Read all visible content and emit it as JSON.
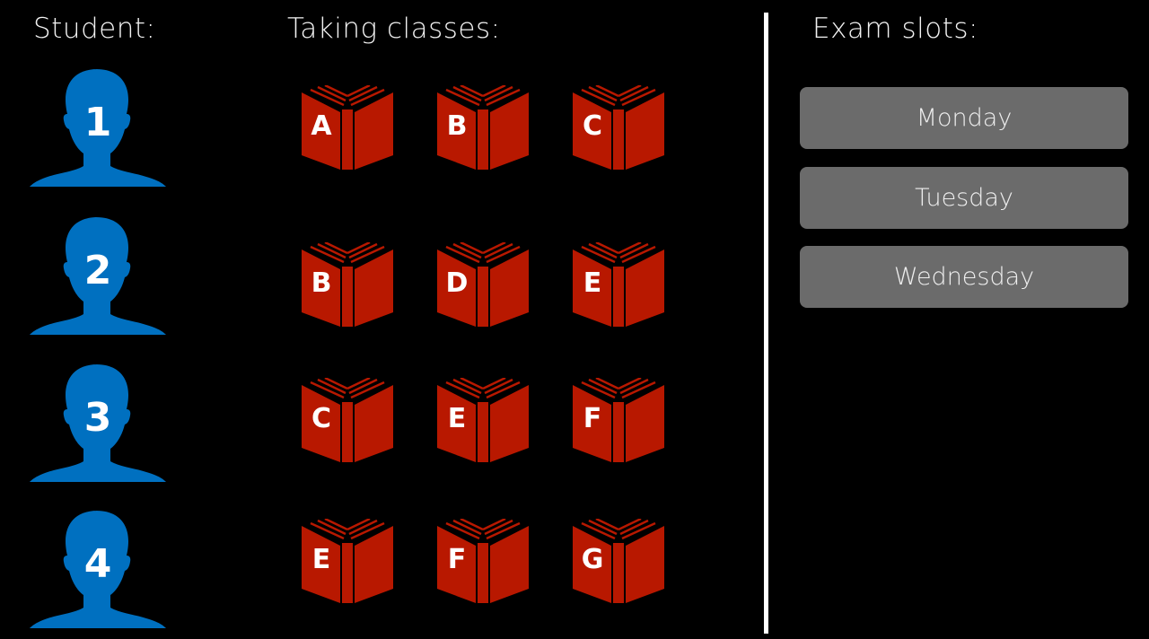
{
  "headers": {
    "student": "Student:",
    "classes": "Taking classes:",
    "slots": "Exam slots:"
  },
  "colors": {
    "person": "#0070c0",
    "book": "#b81800",
    "slot": "#6b6b6b",
    "background": "#000000"
  },
  "students": [
    {
      "number": "1",
      "classes": [
        "A",
        "B",
        "C"
      ]
    },
    {
      "number": "2",
      "classes": [
        "B",
        "D",
        "E"
      ]
    },
    {
      "number": "3",
      "classes": [
        "C",
        "E",
        "F"
      ]
    },
    {
      "number": "4",
      "classes": [
        "E",
        "F",
        "G"
      ]
    }
  ],
  "exam_slots": [
    "Monday",
    "Tuesday",
    "Wednesday"
  ]
}
